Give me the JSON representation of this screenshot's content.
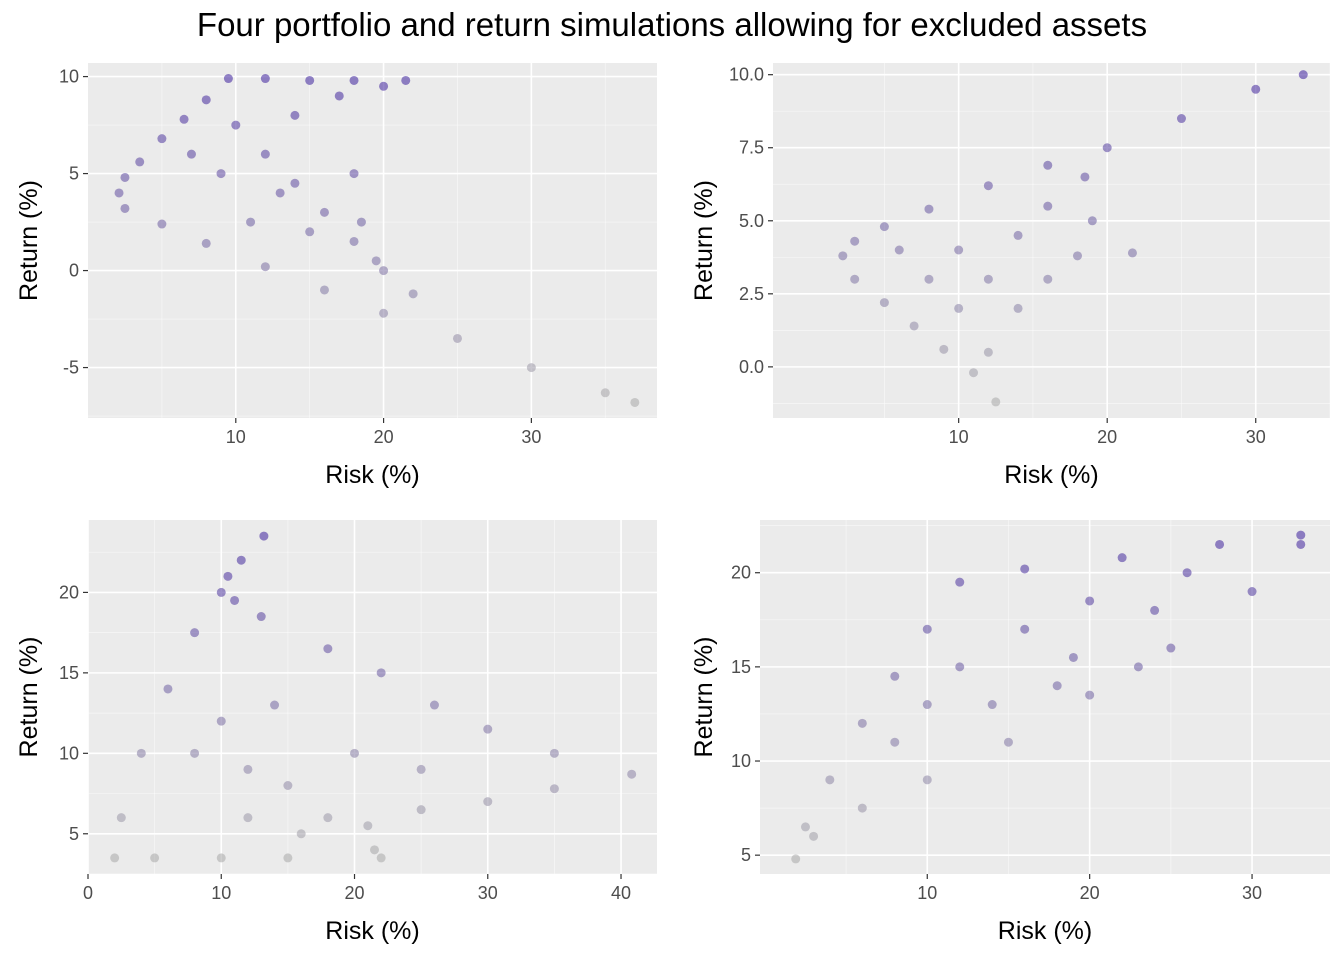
{
  "figure": {
    "title": "Four portfolio and return simulations allowing for excluded assets"
  },
  "colors": {
    "panel_background": "#ebebeb",
    "grid_major": "#ffffff",
    "point_high_return": "#3c1f9c",
    "point_low_return": "#a8a8a8"
  },
  "chart_data": [
    {
      "type": "scatter",
      "xlabel": "Risk (%)",
      "ylabel": "Return (%)",
      "xlim": [
        0,
        38.5
      ],
      "ylim": [
        -7.6,
        10.7
      ],
      "xticks": [
        10,
        20,
        30
      ],
      "xtick_labels": [
        "10",
        "20",
        "30"
      ],
      "yticks": [
        -5,
        0,
        5,
        10
      ],
      "ytick_labels": [
        "-5",
        "0",
        "5",
        "10"
      ],
      "grid": true,
      "color_by": "return",
      "points": [
        [
          2.1,
          4.0
        ],
        [
          2.5,
          4.8
        ],
        [
          3.5,
          5.6
        ],
        [
          5.0,
          6.8
        ],
        [
          6.5,
          7.8
        ],
        [
          8.0,
          8.8
        ],
        [
          9.5,
          9.9
        ],
        [
          12.0,
          9.9
        ],
        [
          15.0,
          9.8
        ],
        [
          18.0,
          9.8
        ],
        [
          21.5,
          9.8
        ],
        [
          2.5,
          3.2
        ],
        [
          5.0,
          2.4
        ],
        [
          8.0,
          1.4
        ],
        [
          12.0,
          0.2
        ],
        [
          16.0,
          -1.0
        ],
        [
          20.0,
          -2.2
        ],
        [
          25.0,
          -3.5
        ],
        [
          30.0,
          -5.0
        ],
        [
          35.0,
          -6.3
        ],
        [
          37.0,
          -6.8
        ],
        [
          10.0,
          7.5
        ],
        [
          12.0,
          6.0
        ],
        [
          14.0,
          4.5
        ],
        [
          16.0,
          3.0
        ],
        [
          18.0,
          1.5
        ],
        [
          20.0,
          0.0
        ],
        [
          22.0,
          -1.2
        ],
        [
          18.0,
          5.0
        ],
        [
          18.5,
          2.5
        ],
        [
          19.5,
          0.5
        ],
        [
          13.0,
          4.0
        ],
        [
          15.0,
          2.0
        ],
        [
          11.0,
          2.5
        ],
        [
          9.0,
          5.0
        ],
        [
          7.0,
          6.0
        ],
        [
          14.0,
          8.0
        ],
        [
          17.0,
          9.0
        ],
        [
          20.0,
          9.5
        ]
      ]
    },
    {
      "type": "scatter",
      "xlabel": "Risk (%)",
      "ylabel": "Return (%)",
      "xlim": [
        -2.5,
        35.0
      ],
      "ylim": [
        -1.75,
        10.4
      ],
      "xticks": [
        10,
        20,
        30
      ],
      "xtick_labels": [
        "10",
        "20",
        "30"
      ],
      "yticks": [
        0.0,
        2.5,
        5.0,
        7.5,
        10.0
      ],
      "ytick_labels": [
        "0.0",
        "2.5",
        "5.0",
        "7.5",
        "10.0"
      ],
      "grid": true,
      "color_by": "return",
      "points": [
        [
          2.2,
          3.8
        ],
        [
          3.0,
          4.3
        ],
        [
          5.0,
          4.8
        ],
        [
          8.0,
          5.4
        ],
        [
          12.0,
          6.2
        ],
        [
          16.0,
          6.9
        ],
        [
          20.0,
          7.5
        ],
        [
          25.0,
          8.5
        ],
        [
          30.0,
          9.5
        ],
        [
          33.2,
          10.0
        ],
        [
          3.0,
          3.0
        ],
        [
          5.0,
          2.2
        ],
        [
          7.0,
          1.4
        ],
        [
          9.0,
          0.6
        ],
        [
          11.0,
          -0.2
        ],
        [
          12.5,
          -1.2
        ],
        [
          12.0,
          0.5
        ],
        [
          14.0,
          2.0
        ],
        [
          16.0,
          3.0
        ],
        [
          18.0,
          3.8
        ],
        [
          21.7,
          3.9
        ],
        [
          10.0,
          4.0
        ],
        [
          12.0,
          3.0
        ],
        [
          14.0,
          4.5
        ],
        [
          16.0,
          5.5
        ],
        [
          19.0,
          5.0
        ],
        [
          18.5,
          6.5
        ],
        [
          8.0,
          3.0
        ],
        [
          6.0,
          4.0
        ],
        [
          10.0,
          2.0
        ]
      ]
    },
    {
      "type": "scatter",
      "xlabel": "Risk (%)",
      "ylabel": "Return (%)",
      "xlim": [
        0,
        42.7
      ],
      "ylim": [
        2.5,
        24.5
      ],
      "xticks": [
        0,
        10,
        20,
        30,
        40
      ],
      "xtick_labels": [
        "0",
        "10",
        "20",
        "30",
        "40"
      ],
      "yticks": [
        5,
        10,
        15,
        20
      ],
      "ytick_labels": [
        "5",
        "10",
        "15",
        "20"
      ],
      "grid": true,
      "color_by": "return",
      "points": [
        [
          2.0,
          3.5
        ],
        [
          2.5,
          6.0
        ],
        [
          4.0,
          10.0
        ],
        [
          6.0,
          14.0
        ],
        [
          8.0,
          17.5
        ],
        [
          10.0,
          20.0
        ],
        [
          11.5,
          22.0
        ],
        [
          13.2,
          23.5
        ],
        [
          10.5,
          21.0
        ],
        [
          11.0,
          19.5
        ],
        [
          13.0,
          18.5
        ],
        [
          18.0,
          16.5
        ],
        [
          22.0,
          15.0
        ],
        [
          26.0,
          13.0
        ],
        [
          30.0,
          11.5
        ],
        [
          35.0,
          10.0
        ],
        [
          40.8,
          8.7
        ],
        [
          35.0,
          7.8
        ],
        [
          30.0,
          7.0
        ],
        [
          25.0,
          6.5
        ],
        [
          21.0,
          5.5
        ],
        [
          21.5,
          4.0
        ],
        [
          22.0,
          3.5
        ],
        [
          15.0,
          3.5
        ],
        [
          10.0,
          3.5
        ],
        [
          5.0,
          3.5
        ],
        [
          8.0,
          10.0
        ],
        [
          10.0,
          12.0
        ],
        [
          12.0,
          9.0
        ],
        [
          15.0,
          8.0
        ],
        [
          18.0,
          6.0
        ],
        [
          14.0,
          13.0
        ],
        [
          16.0,
          5.0
        ],
        [
          12.0,
          6.0
        ],
        [
          20.0,
          10.0
        ],
        [
          25.0,
          9.0
        ]
      ]
    },
    {
      "type": "scatter",
      "xlabel": "Risk (%)",
      "ylabel": "Return (%)",
      "xlim": [
        -0.3,
        34.8
      ],
      "ylim": [
        4.0,
        22.8
      ],
      "xticks": [
        10,
        20,
        30
      ],
      "xtick_labels": [
        "10",
        "20",
        "30"
      ],
      "yticks": [
        5,
        10,
        15,
        20
      ],
      "ytick_labels": [
        "5",
        "10",
        "15",
        "20"
      ],
      "grid": true,
      "color_by": "return",
      "points": [
        [
          1.9,
          4.8
        ],
        [
          2.5,
          6.5
        ],
        [
          4.0,
          9.0
        ],
        [
          6.0,
          12.0
        ],
        [
          8.0,
          14.5
        ],
        [
          10.0,
          17.0
        ],
        [
          12.0,
          19.5
        ],
        [
          16.0,
          20.2
        ],
        [
          22.0,
          20.8
        ],
        [
          28.0,
          21.5
        ],
        [
          33.0,
          22.0
        ],
        [
          3.0,
          6.0
        ],
        [
          6.0,
          7.5
        ],
        [
          10.0,
          9.0
        ],
        [
          15.0,
          11.0
        ],
        [
          20.0,
          13.5
        ],
        [
          25.0,
          16.0
        ],
        [
          30.0,
          19.0
        ],
        [
          33.0,
          21.5
        ],
        [
          12.0,
          15.0
        ],
        [
          16.0,
          17.0
        ],
        [
          19.0,
          15.5
        ],
        [
          23.0,
          15.0
        ],
        [
          20.0,
          18.5
        ],
        [
          14.0,
          13.0
        ],
        [
          10.0,
          13.0
        ],
        [
          8.0,
          11.0
        ],
        [
          18.0,
          14.0
        ],
        [
          24.0,
          18.0
        ],
        [
          26.0,
          20.0
        ]
      ]
    }
  ]
}
